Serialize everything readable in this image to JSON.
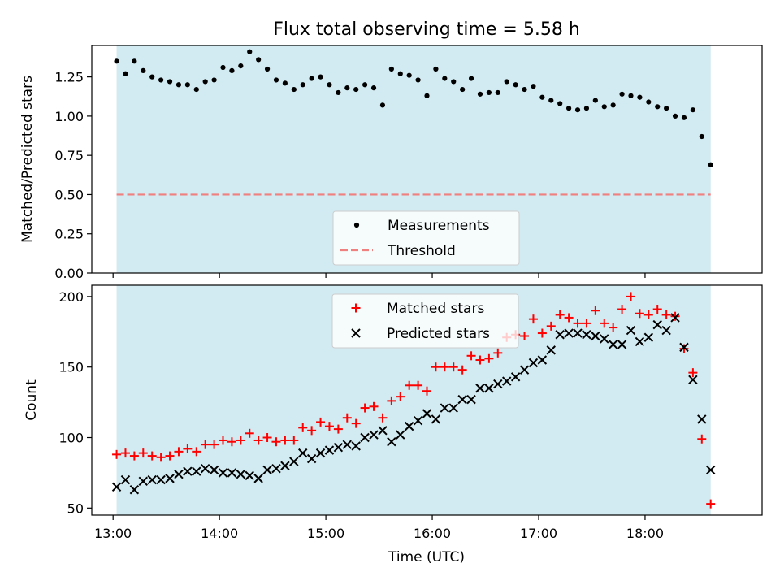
{
  "colors": {
    "observing_band": "#add8e6",
    "matched": "#ff0000",
    "predicted": "#000000",
    "measurement": "#000000",
    "threshold": "#f08080"
  },
  "figure": {
    "title": "Flux total observing time = 5.58 h",
    "xlabel": "Time (UTC)",
    "x_ticks": [
      "13:00",
      "14:00",
      "15:00",
      "16:00",
      "17:00",
      "18:00"
    ]
  },
  "chart_data": [
    {
      "type": "scatter",
      "panel": "top",
      "title": "Flux total observing time = 5.58 h",
      "xlabel": "",
      "ylabel": "Matched/Predicted stars",
      "xlim": [
        "12:48",
        "19:06"
      ],
      "ylim": [
        0.0,
        1.45
      ],
      "y_ticks": [
        "0.00",
        "0.25",
        "0.50",
        "0.75",
        "1.00",
        "1.25"
      ],
      "x_ticks": [
        "13:00",
        "14:00",
        "15:00",
        "16:00",
        "17:00",
        "18:00"
      ],
      "observing_window": [
        "13:02",
        "18:37"
      ],
      "legend_position": "lower center",
      "threshold": {
        "name": "Threshold",
        "value": 0.5,
        "style": "dashed"
      },
      "series": [
        {
          "name": "Measurements",
          "marker": "dot",
          "x": [
            "13:02",
            "13:07",
            "13:12",
            "13:17",
            "13:22",
            "13:27",
            "13:32",
            "13:37",
            "13:42",
            "13:47",
            "13:52",
            "13:57",
            "14:02",
            "14:07",
            "14:12",
            "14:17",
            "14:22",
            "14:27",
            "14:32",
            "14:37",
            "14:42",
            "14:47",
            "14:52",
            "14:57",
            "15:02",
            "15:07",
            "15:12",
            "15:17",
            "15:22",
            "15:27",
            "15:32",
            "15:37",
            "15:42",
            "15:47",
            "15:52",
            "15:57",
            "16:02",
            "16:07",
            "16:12",
            "16:17",
            "16:22",
            "16:27",
            "16:32",
            "16:37",
            "16:42",
            "16:47",
            "16:52",
            "16:57",
            "17:02",
            "17:07",
            "17:12",
            "17:17",
            "17:22",
            "17:27",
            "17:32",
            "17:37",
            "17:42",
            "17:47",
            "17:52",
            "17:57",
            "18:02",
            "18:07",
            "18:12",
            "18:17",
            "18:22",
            "18:27",
            "18:32",
            "18:37"
          ],
          "values": [
            1.35,
            1.27,
            1.35,
            1.29,
            1.25,
            1.23,
            1.22,
            1.2,
            1.2,
            1.17,
            1.22,
            1.23,
            1.31,
            1.29,
            1.32,
            1.41,
            1.36,
            1.3,
            1.23,
            1.21,
            1.17,
            1.2,
            1.24,
            1.25,
            1.2,
            1.15,
            1.18,
            1.17,
            1.2,
            1.18,
            1.07,
            1.3,
            1.27,
            1.26,
            1.23,
            1.13,
            1.3,
            1.24,
            1.22,
            1.17,
            1.24,
            1.14,
            1.15,
            1.15,
            1.22,
            1.2,
            1.17,
            1.19,
            1.12,
            1.1,
            1.08,
            1.05,
            1.04,
            1.05,
            1.1,
            1.06,
            1.07,
            1.14,
            1.13,
            1.12,
            1.09,
            1.06,
            1.05,
            1.0,
            0.99,
            1.04,
            0.87,
            0.69
          ]
        }
      ]
    },
    {
      "type": "scatter",
      "panel": "bottom",
      "title": "",
      "xlabel": "Time (UTC)",
      "ylabel": "Count",
      "xlim": [
        "12:48",
        "19:06"
      ],
      "ylim": [
        45,
        208
      ],
      "y_ticks": [
        "50",
        "100",
        "150",
        "200"
      ],
      "x_ticks": [
        "13:00",
        "14:00",
        "15:00",
        "16:00",
        "17:00",
        "18:00"
      ],
      "observing_window": [
        "13:02",
        "18:37"
      ],
      "legend_position": "upper center",
      "series": [
        {
          "name": "Matched stars",
          "marker": "plus",
          "x": [
            "13:02",
            "13:07",
            "13:12",
            "13:17",
            "13:22",
            "13:27",
            "13:32",
            "13:37",
            "13:42",
            "13:47",
            "13:52",
            "13:57",
            "14:02",
            "14:07",
            "14:12",
            "14:17",
            "14:22",
            "14:27",
            "14:32",
            "14:37",
            "14:42",
            "14:47",
            "14:52",
            "14:57",
            "15:02",
            "15:07",
            "15:12",
            "15:17",
            "15:22",
            "15:27",
            "15:32",
            "15:37",
            "15:42",
            "15:47",
            "15:52",
            "15:57",
            "16:02",
            "16:07",
            "16:12",
            "16:17",
            "16:22",
            "16:27",
            "16:32",
            "16:37",
            "16:42",
            "16:47",
            "16:52",
            "16:57",
            "17:02",
            "17:07",
            "17:12",
            "17:17",
            "17:22",
            "17:27",
            "17:32",
            "17:37",
            "17:42",
            "17:47",
            "17:52",
            "17:57",
            "18:02",
            "18:07",
            "18:12",
            "18:17",
            "18:22",
            "18:27",
            "18:32",
            "18:37"
          ],
          "values": [
            88,
            89,
            87,
            89,
            87,
            86,
            87,
            90,
            92,
            90,
            95,
            95,
            98,
            97,
            98,
            103,
            98,
            100,
            97,
            98,
            98,
            107,
            105,
            111,
            108,
            106,
            114,
            110,
            121,
            122,
            114,
            126,
            129,
            137,
            137,
            133,
            150,
            150,
            150,
            148,
            158,
            155,
            156,
            160,
            171,
            173,
            172,
            184,
            174,
            179,
            187,
            185,
            181,
            181,
            190,
            181,
            178,
            191,
            200,
            188,
            187,
            191,
            187,
            186,
            163,
            146,
            99,
            53
          ]
        },
        {
          "name": "Predicted stars",
          "marker": "x",
          "x": [
            "13:02",
            "13:07",
            "13:12",
            "13:17",
            "13:22",
            "13:27",
            "13:32",
            "13:37",
            "13:42",
            "13:47",
            "13:52",
            "13:57",
            "14:02",
            "14:07",
            "14:12",
            "14:17",
            "14:22",
            "14:27",
            "14:32",
            "14:37",
            "14:42",
            "14:47",
            "14:52",
            "14:57",
            "15:02",
            "15:07",
            "15:12",
            "15:17",
            "15:22",
            "15:27",
            "15:32",
            "15:37",
            "15:42",
            "15:47",
            "15:52",
            "15:57",
            "16:02",
            "16:07",
            "16:12",
            "16:17",
            "16:22",
            "16:27",
            "16:32",
            "16:37",
            "16:42",
            "16:47",
            "16:52",
            "16:57",
            "17:02",
            "17:07",
            "17:12",
            "17:17",
            "17:22",
            "17:27",
            "17:32",
            "17:37",
            "17:42",
            "17:47",
            "17:52",
            "17:57",
            "18:02",
            "18:07",
            "18:12",
            "18:17",
            "18:22",
            "18:27",
            "18:32",
            "18:37"
          ],
          "values": [
            65,
            70,
            63,
            69,
            70,
            70,
            71,
            74,
            76,
            76,
            78,
            77,
            75,
            75,
            74,
            73,
            71,
            77,
            78,
            80,
            83,
            89,
            85,
            89,
            91,
            93,
            95,
            94,
            100,
            102,
            105,
            97,
            102,
            108,
            112,
            117,
            113,
            121,
            121,
            127,
            127,
            135,
            135,
            138,
            140,
            143,
            148,
            153,
            155,
            162,
            173,
            174,
            174,
            173,
            172,
            170,
            166,
            166,
            176,
            168,
            171,
            180,
            176,
            185,
            164,
            141,
            113,
            77
          ]
        }
      ]
    }
  ]
}
